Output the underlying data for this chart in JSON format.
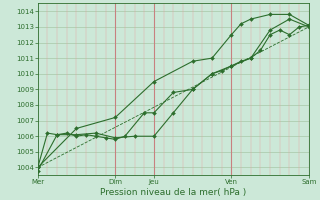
{
  "title": "Pression niveau de la mer( hPa )",
  "background_color": "#cce8d8",
  "line_color": "#2d6e2d",
  "ylim": [
    1003.5,
    1014.5
  ],
  "yticks": [
    1004,
    1005,
    1006,
    1007,
    1008,
    1009,
    1010,
    1011,
    1012,
    1013,
    1014
  ],
  "xlim": [
    0,
    7.0
  ],
  "x_major_positions": [
    0,
    2.0,
    3.0,
    5.0,
    7.0
  ],
  "x_major_labels": [
    "Mer",
    "Dim",
    "Jeu",
    "Ven",
    "Sam"
  ],
  "series1_x": [
    0,
    0.25,
    0.5,
    0.75,
    1.0,
    1.25,
    1.5,
    1.75,
    2.0,
    2.25,
    2.75,
    3.0,
    3.5,
    4.0,
    4.5,
    4.75,
    5.0,
    5.25,
    5.5,
    5.75,
    6.0,
    6.25,
    6.5,
    6.75,
    7.0
  ],
  "series1_y": [
    1004.0,
    1006.2,
    1006.1,
    1006.2,
    1006.0,
    1006.1,
    1006.0,
    1005.9,
    1005.8,
    1006.0,
    1007.5,
    1007.5,
    1008.8,
    1009.0,
    1010.0,
    1010.2,
    1010.5,
    1010.8,
    1011.0,
    1011.5,
    1012.5,
    1012.8,
    1012.5,
    1013.0,
    1013.1
  ],
  "series2_x": [
    0,
    0.5,
    1.0,
    1.5,
    2.0,
    2.5,
    3.0,
    3.5,
    4.0,
    4.5,
    5.0,
    5.5,
    6.0,
    6.5,
    7.0
  ],
  "series2_y": [
    1003.8,
    1006.1,
    1006.1,
    1006.2,
    1005.9,
    1006.0,
    1006.0,
    1007.5,
    1009.0,
    1010.0,
    1010.5,
    1011.0,
    1012.8,
    1013.5,
    1013.0
  ],
  "series3_x": [
    0,
    1.0,
    2.0,
    3.0,
    4.0,
    4.5,
    5.0,
    5.25,
    5.5,
    6.0,
    6.5,
    7.0
  ],
  "series3_y": [
    1004.0,
    1006.5,
    1007.2,
    1009.5,
    1010.8,
    1011.0,
    1012.5,
    1013.2,
    1013.5,
    1013.8,
    1013.8,
    1013.1
  ],
  "trend_x": [
    0,
    7.0
  ],
  "trend_y": [
    1004.0,
    1013.0
  ],
  "marker_size": 2.0,
  "linewidth": 0.8,
  "trend_linewidth": 0.6,
  "grid_h_color": "#a8c8a8",
  "grid_v_color": "#e8a0a0",
  "grid_v_major_color": "#c88080",
  "tick_fontsize": 5.0,
  "xlabel_fontsize": 6.5
}
